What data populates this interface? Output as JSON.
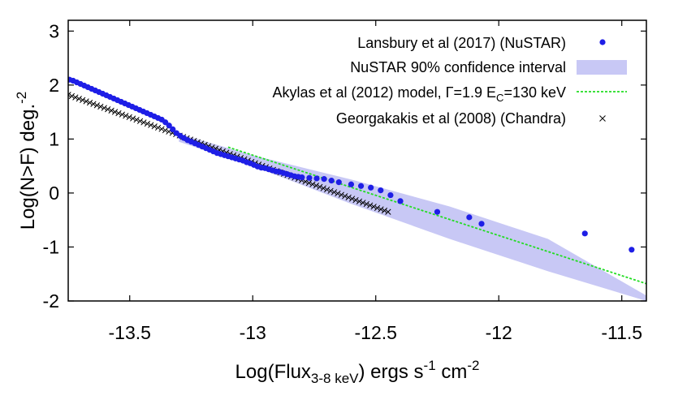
{
  "chart_data": {
    "type": "scatter",
    "xlabel": {
      "main": "Log(Flux",
      "sub": "3-8 keV",
      "rest1": ") ergs s",
      "sup1": "-1",
      "rest2": " cm",
      "sup2": "-2"
    },
    "ylabel": {
      "main": "Log(N>F) deg.",
      "sup": "-2"
    },
    "xlim": [
      -13.75,
      -11.4
    ],
    "ylim": [
      -2,
      3.2
    ],
    "xticks": [
      -13.5,
      -13,
      -12.5,
      -12,
      -11.5
    ],
    "xtick_labels": [
      "-13.5",
      "-13",
      "-12.5",
      "-12",
      "-11.5"
    ],
    "yticks": [
      -2,
      -1,
      0,
      1,
      2,
      3
    ],
    "ytick_labels": [
      "-2",
      "-1",
      "0",
      "1",
      "2",
      "3"
    ],
    "grid": false,
    "legend_position": "top-right",
    "series": [
      {
        "name": "Lansbury et al (2017) (NuSTAR)",
        "kind": "points",
        "color": "#1e1ee6",
        "x": [
          -13.745,
          -13.73,
          -13.715,
          -13.7,
          -13.685,
          -13.67,
          -13.655,
          -13.64,
          -13.625,
          -13.61,
          -13.595,
          -13.58,
          -13.565,
          -13.55,
          -13.535,
          -13.52,
          -13.505,
          -13.49,
          -13.475,
          -13.46,
          -13.445,
          -13.43,
          -13.415,
          -13.4,
          -13.385,
          -13.37,
          -13.355,
          -13.34,
          -13.325,
          -13.31,
          -13.295,
          -13.28,
          -13.265,
          -13.25,
          -13.235,
          -13.22,
          -13.205,
          -13.19,
          -13.175,
          -13.16,
          -13.145,
          -13.13,
          -13.115,
          -13.1,
          -13.085,
          -13.07,
          -13.055,
          -13.04,
          -13.025,
          -13.01,
          -12.995,
          -12.98,
          -12.965,
          -12.95,
          -12.935,
          -12.92,
          -12.905,
          -12.89,
          -12.875,
          -12.86,
          -12.845,
          -12.83,
          -12.815,
          -12.8,
          -12.77,
          -12.74,
          -12.71,
          -12.68,
          -12.65,
          -12.6,
          -12.56,
          -12.52,
          -12.48,
          -12.44,
          -12.4,
          -12.25,
          -12.12,
          -12.07,
          -11.65,
          -11.46
        ],
        "y": [
          2.1,
          2.08,
          2.05,
          2.02,
          1.99,
          1.96,
          1.93,
          1.9,
          1.87,
          1.84,
          1.81,
          1.78,
          1.75,
          1.72,
          1.69,
          1.66,
          1.63,
          1.6,
          1.57,
          1.54,
          1.51,
          1.48,
          1.45,
          1.42,
          1.39,
          1.36,
          1.31,
          1.25,
          1.18,
          1.11,
          1.06,
          1.02,
          0.98,
          0.95,
          0.92,
          0.89,
          0.86,
          0.83,
          0.8,
          0.77,
          0.74,
          0.72,
          0.7,
          0.68,
          0.66,
          0.64,
          0.62,
          0.6,
          0.57,
          0.55,
          0.52,
          0.49,
          0.47,
          0.46,
          0.44,
          0.42,
          0.4,
          0.39,
          0.37,
          0.35,
          0.33,
          0.31,
          0.3,
          0.29,
          0.28,
          0.27,
          0.26,
          0.23,
          0.2,
          0.16,
          0.13,
          0.1,
          0.05,
          -0.04,
          -0.15,
          -0.35,
          -0.45,
          -0.57,
          -0.75,
          -1.05
        ]
      },
      {
        "name": "NuSTAR 90% confidence interval",
        "kind": "band",
        "color": "#c8c8f5",
        "x": [
          -13.3,
          -13.0,
          -12.6,
          -12.2,
          -11.8,
          -11.4
        ],
        "lower": [
          0.95,
          0.5,
          -0.2,
          -0.85,
          -1.45,
          -2.0
        ],
        "upper": [
          1.1,
          0.7,
          0.25,
          -0.25,
          -0.85,
          -1.9
        ]
      },
      {
        "name": "Akylas et al (2012) model, Γ=1.9 E",
        "name_sub": "C",
        "name_rest": "=130 keV",
        "kind": "line",
        "color": "#22dd22",
        "x": [
          -13.1,
          -11.4
        ],
        "y": [
          0.85,
          -1.68
        ]
      },
      {
        "name": "Georgakakis et al (2008) (Chandra)",
        "kind": "crosses",
        "color": "#000000",
        "x_start": -13.75,
        "x_end": -12.45,
        "n": 90,
        "y_start": 1.82,
        "y_end": -0.35
      }
    ]
  }
}
